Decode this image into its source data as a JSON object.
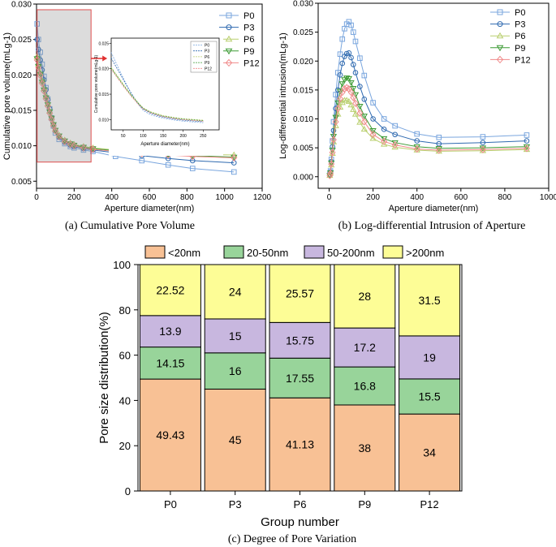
{
  "chart_data": [
    {
      "type": "line",
      "panel": "a",
      "caption": "(a) Cumulative Pore Volume",
      "xlabel": "Aperture diameter(nm)",
      "ylabel": "Cumulative pore volume(mLg-1)",
      "xlim": [
        0,
        1200
      ],
      "ylim": [
        0.004,
        0.03
      ],
      "xticks": [
        0,
        200,
        400,
        600,
        800,
        1000,
        1200
      ],
      "yticks": [
        0.005,
        0.01,
        0.015,
        0.02,
        0.025,
        0.03
      ],
      "xtick_labels": [
        "0",
        "200",
        "400",
        "600",
        "800",
        "1000",
        "1200"
      ],
      "ytick_labels": [
        "0.005",
        "0.010",
        "0.015",
        "0.020",
        "0.025",
        "0.030"
      ],
      "legend": "top-right",
      "x": [
        3,
        10,
        20,
        30,
        40,
        50,
        60,
        70,
        80,
        90,
        100,
        120,
        150,
        180,
        200,
        250,
        300,
        420,
        560,
        700,
        830,
        1050
      ],
      "series": [
        {
          "name": "P0",
          "color": "#7aa6de",
          "marker": "square",
          "values": [
            0.0272,
            0.025,
            0.0232,
            0.0215,
            0.0198,
            0.0182,
            0.0166,
            0.0152,
            0.0139,
            0.0128,
            0.0118,
            0.0109,
            0.0103,
            0.0099,
            0.0097,
            0.0094,
            0.0092,
            0.0085,
            0.0079,
            0.0073,
            0.0068,
            0.0063
          ]
        },
        {
          "name": "P3",
          "color": "#2f6ab0",
          "marker": "circle",
          "values": [
            0.025,
            0.0236,
            0.0221,
            0.0207,
            0.0193,
            0.0179,
            0.0165,
            0.0152,
            0.014,
            0.013,
            0.0121,
            0.0112,
            0.0105,
            0.0101,
            0.0099,
            0.0096,
            0.0094,
            0.009,
            0.0086,
            0.0082,
            0.0079,
            0.0076
          ]
        },
        {
          "name": "P6",
          "color": "#b9cf6e",
          "marker": "triangle-up",
          "values": [
            0.0226,
            0.0215,
            0.0203,
            0.0192,
            0.0181,
            0.017,
            0.0159,
            0.0149,
            0.014,
            0.0131,
            0.0123,
            0.0115,
            0.0108,
            0.0104,
            0.0102,
            0.0099,
            0.0097,
            0.0094,
            0.0092,
            0.009,
            0.0088,
            0.0087
          ]
        },
        {
          "name": "P9",
          "color": "#3d9b35",
          "marker": "triangle-down",
          "values": [
            0.0223,
            0.0212,
            0.0201,
            0.019,
            0.0179,
            0.0168,
            0.0158,
            0.0148,
            0.0139,
            0.013,
            0.0122,
            0.0114,
            0.0107,
            0.0103,
            0.0101,
            0.0098,
            0.0096,
            0.0093,
            0.009,
            0.0088,
            0.0086,
            0.0084
          ]
        },
        {
          "name": "P12",
          "color": "#f08a8a",
          "marker": "diamond",
          "values": [
            0.0221,
            0.021,
            0.0199,
            0.0188,
            0.0177,
            0.0166,
            0.0156,
            0.0146,
            0.0137,
            0.0128,
            0.0121,
            0.0113,
            0.0106,
            0.0102,
            0.01,
            0.0097,
            0.0095,
            0.0092,
            0.0089,
            0.0087,
            0.0085,
            0.0083
          ]
        }
      ],
      "inset": {
        "xlabel": "Aperture diameter(nm)",
        "ylabel": "Cumulative pore volume(mLg-1)",
        "xlim": [
          20,
          290
        ],
        "ylim": [
          0.008,
          0.026
        ],
        "xticks": [
          50,
          100,
          150,
          200,
          250
        ],
        "yticks": [
          0.01,
          0.015,
          0.02,
          0.025
        ],
        "xtick_labels": [
          "50",
          "100",
          "150",
          "200",
          "250"
        ],
        "ytick_labels": [
          "0.010",
          "0.015",
          "0.020",
          "0.025"
        ],
        "legend_labels": [
          "P0",
          "P3",
          "P6",
          "P9",
          "P12"
        ]
      }
    },
    {
      "type": "line",
      "panel": "b",
      "caption": "(b) Log-differential Intrusion of Aperture",
      "xlabel": "Aperture diameter(nm)",
      "ylabel": "Log-differential intrusion(mLg-1)",
      "xlim": [
        -50,
        1000
      ],
      "ylim": [
        -0.002,
        0.03
      ],
      "xticks": [
        0,
        200,
        400,
        600,
        800,
        1000
      ],
      "yticks": [
        0.0,
        0.005,
        0.01,
        0.015,
        0.02,
        0.025,
        0.03
      ],
      "xtick_labels": [
        "0",
        "200",
        "400",
        "600",
        "800",
        "1000"
      ],
      "ytick_labels": [
        "0.000",
        "0.005",
        "0.010",
        "0.015",
        "0.020",
        "0.025",
        "0.030"
      ],
      "legend": "top-right",
      "x": [
        3,
        6,
        10,
        15,
        20,
        30,
        40,
        50,
        60,
        70,
        80,
        90,
        100,
        110,
        120,
        140,
        160,
        200,
        250,
        300,
        400,
        500,
        700,
        900
      ],
      "series": [
        {
          "name": "P0",
          "color": "#7aa6de",
          "marker": "square",
          "values": [
            0.0004,
            0.001,
            0.003,
            0.0062,
            0.0095,
            0.0142,
            0.018,
            0.0212,
            0.0238,
            0.0256,
            0.0264,
            0.0268,
            0.0262,
            0.025,
            0.0234,
            0.0205,
            0.0175,
            0.0128,
            0.01,
            0.0088,
            0.0074,
            0.0068,
            0.0069,
            0.0072
          ]
        },
        {
          "name": "P3",
          "color": "#2f6ab0",
          "marker": "circle",
          "values": [
            0.0003,
            0.0008,
            0.0026,
            0.0052,
            0.008,
            0.0118,
            0.015,
            0.0176,
            0.0196,
            0.0208,
            0.0213,
            0.0214,
            0.0206,
            0.0194,
            0.018,
            0.0156,
            0.0134,
            0.01,
            0.0082,
            0.0073,
            0.0062,
            0.0057,
            0.0059,
            0.0062
          ]
        },
        {
          "name": "P6",
          "color": "#b9cf6e",
          "marker": "triangle-up",
          "values": [
            0.0002,
            0.0006,
            0.002,
            0.004,
            0.006,
            0.0088,
            0.0108,
            0.012,
            0.0128,
            0.0132,
            0.0132,
            0.013,
            0.0124,
            0.0116,
            0.0108,
            0.0094,
            0.0082,
            0.0066,
            0.0056,
            0.0051,
            0.0046,
            0.0044,
            0.0045,
            0.0047
          ]
        },
        {
          "name": "P9",
          "color": "#3d9b35",
          "marker": "triangle-down",
          "values": [
            0.0002,
            0.0007,
            0.0024,
            0.0046,
            0.007,
            0.0103,
            0.0128,
            0.0148,
            0.0161,
            0.0168,
            0.0171,
            0.017,
            0.0163,
            0.0153,
            0.0142,
            0.0122,
            0.0105,
            0.008,
            0.0066,
            0.0059,
            0.0052,
            0.0049,
            0.005,
            0.0052
          ]
        },
        {
          "name": "P12",
          "color": "#f08a8a",
          "marker": "diamond",
          "values": [
            0.0002,
            0.0006,
            0.0022,
            0.0042,
            0.0064,
            0.0095,
            0.0118,
            0.0135,
            0.0146,
            0.0152,
            0.0154,
            0.0152,
            0.0146,
            0.0137,
            0.0127,
            0.011,
            0.0095,
            0.0073,
            0.0061,
            0.0055,
            0.0048,
            0.0046,
            0.0047,
            0.0049
          ]
        }
      ]
    },
    {
      "type": "bar",
      "stacked": true,
      "panel": "c",
      "caption": "(c) Degree of Pore Variation",
      "xlabel": "Group number",
      "ylabel": "Pore size distribution(%)",
      "ylim": [
        0,
        100
      ],
      "yticks": [
        0,
        20,
        40,
        60,
        80,
        100
      ],
      "ytick_labels": [
        "0",
        "20",
        "40",
        "60",
        "80",
        "100"
      ],
      "legend": "top",
      "categories": [
        "P0",
        "P3",
        "P6",
        "P9",
        "P12"
      ],
      "series": [
        {
          "name": "<20nm",
          "color": "#f8c195",
          "values": [
            49.43,
            45,
            41.13,
            38,
            34
          ],
          "labels": [
            "49.43",
            "45",
            "41.13",
            "38",
            "34"
          ]
        },
        {
          "name": "20-50nm",
          "color": "#98d49a",
          "values": [
            14.15,
            16,
            17.55,
            16.8,
            15.5
          ],
          "labels": [
            "14.15",
            "16",
            "17.55",
            "16.8",
            "15.5"
          ]
        },
        {
          "name": "50-200nm",
          "color": "#c8b7df",
          "values": [
            13.9,
            15,
            15.75,
            17.2,
            19
          ],
          "labels": [
            "13.9",
            "15",
            "15.75",
            "17.2",
            "19"
          ]
        },
        {
          "name": ">200nm",
          "color": "#fdfd96",
          "values": [
            22.52,
            24,
            25.57,
            28,
            31.5
          ],
          "labels": [
            "22.52",
            "24",
            "25.57",
            "28",
            "31.5"
          ]
        }
      ]
    }
  ]
}
